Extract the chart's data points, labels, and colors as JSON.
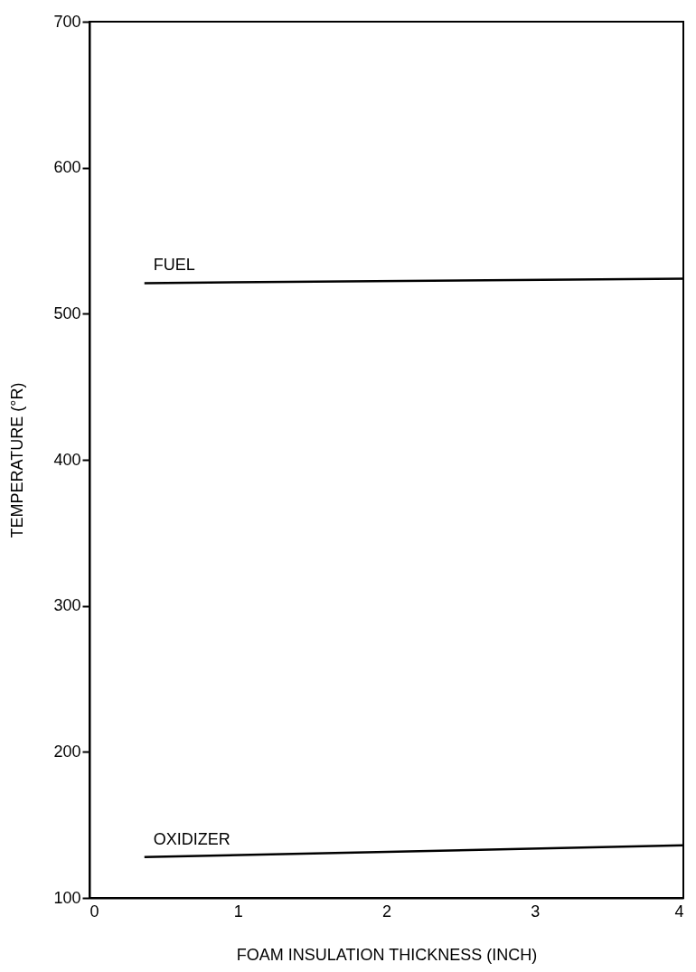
{
  "chart_data": {
    "type": "line",
    "xlabel": "FOAM INSULATION THICKNESS (INCH)",
    "ylabel": "TEMPERATURE (°R)",
    "x": [
      0.37,
      4
    ],
    "series": [
      {
        "name": "FUEL",
        "color": "#000000",
        "values": [
          521,
          524
        ]
      },
      {
        "name": "OXIDIZER",
        "color": "#000000",
        "values": [
          128,
          136
        ]
      }
    ],
    "xlim": [
      0,
      4
    ],
    "xticks": [
      0,
      1,
      2,
      3,
      4
    ],
    "ylim": [
      100,
      700
    ],
    "yticks": [
      100,
      200,
      300,
      400,
      500,
      600,
      700
    ],
    "grid": false,
    "legend": false,
    "marker": "none",
    "line_style": "solid"
  }
}
